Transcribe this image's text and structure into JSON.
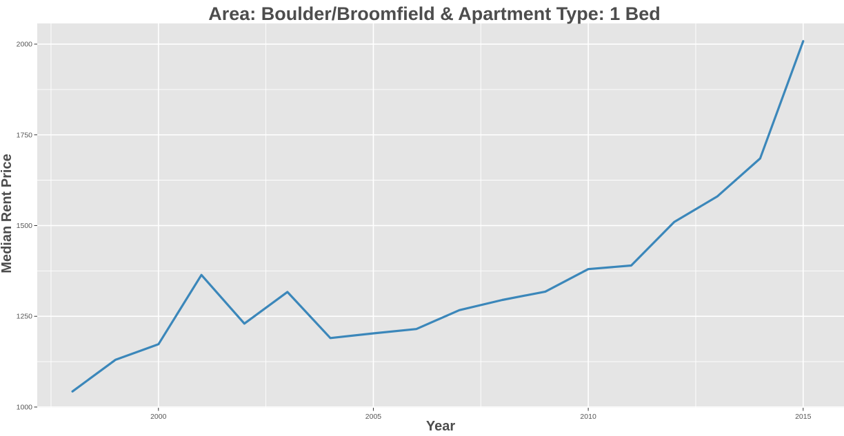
{
  "page": {
    "background": "#ffffff"
  },
  "chart_data": {
    "type": "line",
    "title": "Area: Boulder/Broomfield & Apartment Type: 1 Bed",
    "xlabel": "Year",
    "ylabel": "Median Rent Price",
    "x": [
      1998,
      1999,
      2000,
      2001,
      2002,
      2003,
      2004,
      2005,
      2006,
      2007,
      2008,
      2009,
      2010,
      2011,
      2012,
      2013,
      2014,
      2015
    ],
    "series": [
      {
        "name": "median-rent-price",
        "values": [
          1043,
          1130,
          1173,
          1364,
          1230,
          1317,
          1190,
          1203,
          1215,
          1267,
          1295,
          1318,
          1380,
          1390,
          1510,
          1580,
          1685,
          2008
        ]
      }
    ],
    "x_ticks": [
      2000,
      2005,
      2010,
      2015
    ],
    "y_ticks": [
      1000,
      1250,
      1500,
      1750,
      2000
    ],
    "x_minor_ticks": [
      1997.5,
      2002.5,
      2007.5,
      2012.5
    ],
    "y_minor_ticks": [
      1125,
      1375,
      1625,
      1875
    ],
    "xlim": [
      1997.18,
      2015.95
    ],
    "ylim": [
      998,
      2057
    ],
    "grid": "major+minor",
    "legend": "none",
    "colors": {
      "line": "#3b87ba",
      "panel_bg": "#e5e5e5",
      "grid": "#ffffff",
      "title_text": "#4d4d4d",
      "axis_label_text": "#4d4d4d",
      "tick_label_text": "#555555",
      "tick_mark": "#333333"
    }
  }
}
